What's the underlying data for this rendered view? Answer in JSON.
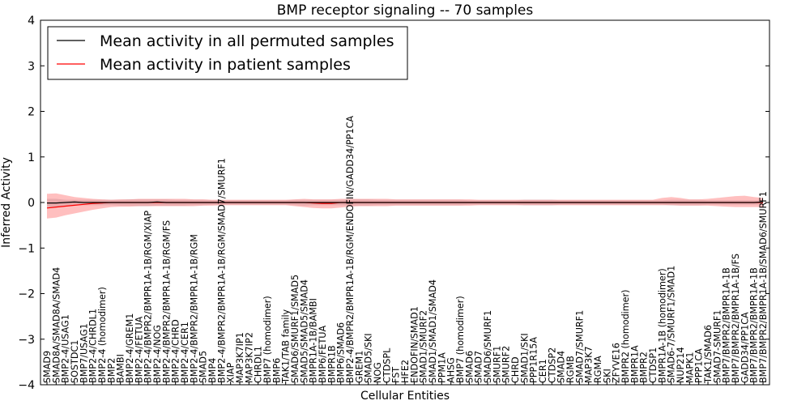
{
  "chart_data": {
    "type": "line",
    "title": "BMP receptor signaling -- 70 samples",
    "xlabel": "Cellular Entities",
    "ylabel": "Inferred Activity",
    "ylim": [
      -4,
      4
    ],
    "yticks": [
      "−4",
      "−3",
      "−2",
      "−1",
      "0",
      "1",
      "2",
      "3",
      "4"
    ],
    "grid": false,
    "legend_position": "top-left",
    "colors": {
      "permuted": "#000000",
      "patient": "#ff0000",
      "patient_band": "#ff8080",
      "permuted_band": "#b0b0b8"
    },
    "categories": [
      "SMAD9",
      "SMAD8A/SMAD8A/SMAD4",
      "BMP2-4/USAG1",
      "SOSTDC1",
      "BMP7/USAG1",
      "BMP2-4/CHRDL1",
      "BMP2-4 (homodimer)",
      "BMP2",
      "BAMBI",
      "BMP2-4/GREM1",
      "BMP2-4/FETUA",
      "BMP2-4/BMPR2/BMPR1A-1B/RGM/XIAP",
      "BMP2-4/NOG",
      "BMP2-4/BMPR2/BMPR1A-1B/RGM/FS",
      "BMP2-4/CHRD",
      "BMP2-4/CER1",
      "BMP2-4/BMPR2/BMPR1A-1B/RGM",
      "SMAD5",
      "BMP4",
      "BMP2-4/BMPR2/BMPR1A-1B/RGM/SMAD7/SMURF1",
      "XIAP",
      "MAP3K7IP1",
      "MAP3K7IP2",
      "CHRDL1",
      "BMP7 (homodimer)",
      "BMP6",
      "TAK1/TAB family",
      "SMAD6/SMURF1/SMAD5",
      "SMAD5/SMAD5/SMAD4",
      "BMPR1A-1B/BAMBI",
      "BMP6/FETUA",
      "BMPR1B",
      "BMP6/SMAD6",
      "BMP2-4/BMPR2/BMPR1A-1B/RGM/ENDOFIN/GADD34/PP1CA",
      "GREM1",
      "SMAD5/SKI",
      "NOG",
      "CTDSPL",
      "FST",
      "HFE2",
      "ENDOFIN/SMAD1",
      "SMAD1/SMURF2",
      "SMAD1/SMAD1/SMAD4",
      "PPM1A",
      "AHSG",
      "BMP7 (homodimer)",
      "SMAD6",
      "SMAD7",
      "SMAD6/SMURF1",
      "SMURF1",
      "SMURF2",
      "CHRD",
      "SMAD1/SKI",
      "PPP1R15A",
      "CER1",
      "CTDSP2",
      "SMAD4",
      "RGMB",
      "SMAD7/SMURF1",
      "MAP3K7",
      "RGMA",
      "SKI",
      "ZFYVE16",
      "BMPR2 (homodimer)",
      "BMPR1A",
      "BMPR2",
      "CTDSP1",
      "BMPR1A-1B (homodimer)",
      "SMAD6-7/SMURF1/SMAD1",
      "NUP214",
      "MAPK1",
      "PPP1CA",
      "TAK1/SMAD6",
      "SMAD7-SMURF1",
      "BMP7/BMPR2/BMPR1A-1B",
      "BMP7/BMPR2/BMPR1A-1B/FS",
      "GADD34/PP1CA",
      "BMP7/BMPR2/BMPR1A-1B",
      "BMP7/BMPR2/BMPR1A-1B/SMAD6/SMURF1"
    ],
    "series": [
      {
        "name": "Mean activity in all permuted samples",
        "color": "#000000",
        "values": [
          -0.01,
          -0.01,
          0,
          0.01,
          0,
          0,
          0,
          0,
          0,
          0,
          0,
          0,
          0.01,
          0,
          0,
          0,
          0,
          0,
          0,
          0,
          0,
          0,
          0,
          0,
          0,
          0,
          0,
          0,
          0,
          0,
          0,
          0,
          0,
          0,
          0,
          0,
          0,
          0,
          0,
          0,
          0,
          0,
          0,
          0,
          0,
          0,
          0,
          0,
          0,
          0,
          0,
          0,
          0,
          0,
          0,
          0,
          0,
          0,
          0,
          0,
          0,
          0,
          0,
          0,
          0,
          0,
          0,
          0,
          0,
          0,
          0,
          0,
          0,
          0,
          0,
          0,
          0,
          0,
          0.01
        ],
        "band_low": [
          -0.1,
          -0.1,
          -0.07,
          -0.06,
          -0.06,
          -0.06,
          -0.06,
          -0.06,
          -0.07,
          -0.07,
          -0.08,
          -0.08,
          -0.07,
          -0.07,
          -0.07,
          -0.07,
          -0.06,
          -0.06,
          -0.05,
          -0.05,
          -0.05,
          -0.05,
          -0.05,
          -0.05,
          -0.05,
          -0.05,
          -0.05,
          -0.06,
          -0.07,
          -0.06,
          -0.06,
          -0.06,
          -0.06,
          -0.07,
          -0.07,
          -0.07,
          -0.06,
          -0.06,
          -0.06,
          -0.06,
          -0.06,
          -0.06,
          -0.06,
          -0.06,
          -0.06,
          -0.06,
          -0.05,
          -0.05,
          -0.05,
          -0.05,
          -0.05,
          -0.05,
          -0.06,
          -0.06,
          -0.06,
          -0.06,
          -0.05,
          -0.05,
          -0.05,
          -0.05,
          -0.05,
          -0.05,
          -0.05,
          -0.05,
          -0.05,
          -0.05,
          -0.05,
          -0.05,
          -0.06,
          -0.06,
          -0.06,
          -0.06,
          -0.05,
          -0.05,
          -0.05,
          -0.05,
          -0.05,
          -0.05,
          -0.04
        ],
        "band_high": [
          0.08,
          0.08,
          0.06,
          0.06,
          0.06,
          0.06,
          0.06,
          0.06,
          0.06,
          0.07,
          0.07,
          0.07,
          0.07,
          0.07,
          0.06,
          0.06,
          0.06,
          0.06,
          0.05,
          0.05,
          0.05,
          0.05,
          0.05,
          0.05,
          0.05,
          0.05,
          0.05,
          0.06,
          0.06,
          0.06,
          0.06,
          0.06,
          0.06,
          0.07,
          0.07,
          0.07,
          0.06,
          0.06,
          0.06,
          0.06,
          0.06,
          0.06,
          0.06,
          0.06,
          0.06,
          0.06,
          0.05,
          0.05,
          0.05,
          0.05,
          0.05,
          0.05,
          0.06,
          0.06,
          0.06,
          0.06,
          0.05,
          0.05,
          0.05,
          0.05,
          0.05,
          0.05,
          0.05,
          0.05,
          0.05,
          0.05,
          0.05,
          0.05,
          0.06,
          0.06,
          0.06,
          0.06,
          0.05,
          0.05,
          0.05,
          0.05,
          0.05,
          0.05,
          0.05
        ]
      },
      {
        "name": "Mean activity in patient samples",
        "color": "#ff0000",
        "values": [
          -0.12,
          -0.1,
          -0.08,
          -0.06,
          -0.04,
          -0.02,
          -0.01,
          0,
          0,
          0,
          0,
          0,
          0,
          0,
          0,
          0,
          0,
          0,
          0,
          0,
          0,
          0,
          0,
          0,
          0,
          0,
          0,
          0,
          0,
          -0.01,
          -0.02,
          -0.02,
          0,
          0,
          0,
          0,
          0,
          0,
          0,
          0,
          0,
          0,
          0,
          0,
          0,
          0,
          0,
          0,
          0,
          0,
          0,
          0,
          0,
          0,
          0,
          0,
          0,
          0,
          0,
          0,
          0,
          0,
          0,
          0,
          0,
          0,
          0,
          0,
          0,
          0,
          0,
          0,
          0,
          0,
          0,
          0,
          0,
          0,
          0
        ],
        "band_low": [
          -0.35,
          -0.33,
          -0.28,
          -0.24,
          -0.2,
          -0.16,
          -0.13,
          -0.1,
          -0.09,
          -0.09,
          -0.08,
          -0.08,
          -0.08,
          -0.08,
          -0.08,
          -0.08,
          -0.08,
          -0.07,
          -0.07,
          -0.06,
          -0.06,
          -0.06,
          -0.06,
          -0.06,
          -0.06,
          -0.06,
          -0.06,
          -0.08,
          -0.1,
          -0.12,
          -0.13,
          -0.13,
          -0.11,
          -0.09,
          -0.08,
          -0.08,
          -0.08,
          -0.08,
          -0.07,
          -0.07,
          -0.07,
          -0.07,
          -0.07,
          -0.07,
          -0.07,
          -0.07,
          -0.07,
          -0.06,
          -0.06,
          -0.06,
          -0.06,
          -0.06,
          -0.06,
          -0.06,
          -0.06,
          -0.06,
          -0.06,
          -0.06,
          -0.06,
          -0.06,
          -0.06,
          -0.06,
          -0.06,
          -0.06,
          -0.06,
          -0.06,
          -0.06,
          -0.06,
          -0.06,
          -0.07,
          -0.07,
          -0.07,
          -0.07,
          -0.08,
          -0.09,
          -0.1,
          -0.1,
          -0.1,
          -0.1
        ],
        "band_high": [
          0.19,
          0.2,
          0.16,
          0.12,
          0.1,
          0.08,
          0.07,
          0.06,
          0.07,
          0.07,
          0.08,
          0.08,
          0.08,
          0.08,
          0.08,
          0.08,
          0.07,
          0.07,
          0.06,
          0.06,
          0.06,
          0.06,
          0.06,
          0.06,
          0.06,
          0.06,
          0.06,
          0.07,
          0.08,
          0.07,
          0.07,
          0.07,
          0.08,
          0.08,
          0.08,
          0.08,
          0.08,
          0.08,
          0.07,
          0.07,
          0.07,
          0.07,
          0.07,
          0.07,
          0.07,
          0.07,
          0.07,
          0.06,
          0.06,
          0.06,
          0.06,
          0.06,
          0.06,
          0.06,
          0.06,
          0.06,
          0.06,
          0.06,
          0.06,
          0.06,
          0.06,
          0.06,
          0.06,
          0.06,
          0.06,
          0.06,
          0.06,
          0.1,
          0.12,
          0.1,
          0.07,
          0.07,
          0.08,
          0.1,
          0.12,
          0.14,
          0.15,
          0.12,
          0.1
        ]
      }
    ]
  }
}
